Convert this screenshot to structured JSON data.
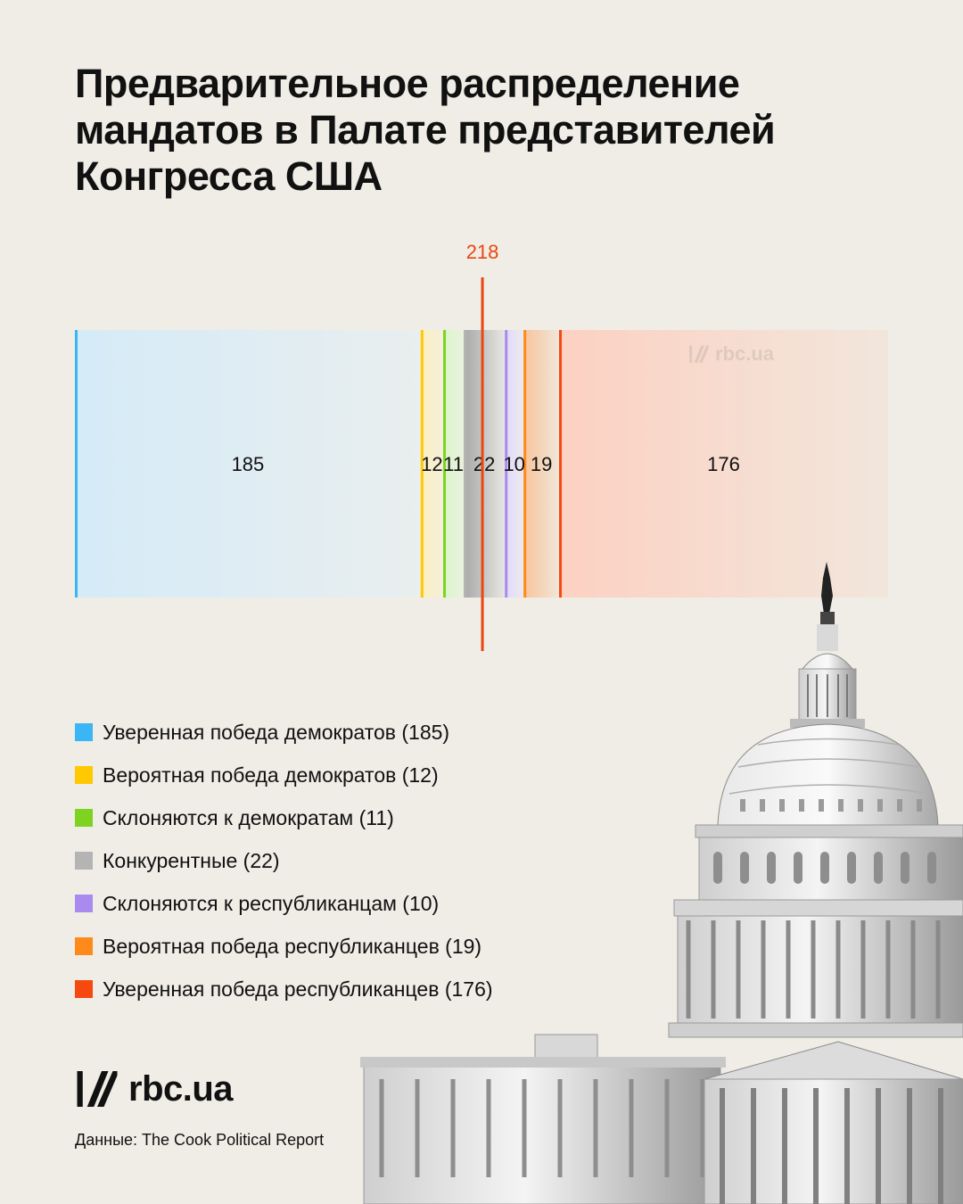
{
  "title": "Предварительное распределение мандатов в Палате представителей Конгресса США",
  "chart_data": {
    "type": "bar",
    "orientation": "horizontal-stacked",
    "majority_line": {
      "value": 218,
      "label": "218",
      "color": "#e8470f"
    },
    "segments": [
      {
        "name": "Уверенная победа демократов",
        "value": 185,
        "label": "185",
        "color": "#3ab5f5",
        "fill_from": "#d5ebf8",
        "fill_to": "#e9eeee"
      },
      {
        "name": "Вероятная победа демократов",
        "value": 12,
        "label": "12",
        "color": "#ffc800",
        "fill_from": "#fbefbe",
        "fill_to": "#f5efdc"
      },
      {
        "name": "Склоняются к демократам",
        "value": 11,
        "label": "11",
        "color": "#7ed321",
        "fill_from": "#daf5c8",
        "fill_to": "#eaf2df"
      },
      {
        "name": "Конкурентные",
        "value": 22,
        "label": "22",
        "color": "#b4b4b4",
        "fill_from": "#a8a8a8",
        "fill_to": "#e6e6e2"
      },
      {
        "name": "Склоняются к республиканцам",
        "value": 10,
        "label": "10",
        "color": "#a98bf0",
        "fill_from": "#e1dbf7",
        "fill_to": "#ece9f0"
      },
      {
        "name": "Вероятная победа республиканцев",
        "value": 19,
        "label": "19",
        "color": "#ff8a1c",
        "fill_from": "#f8c49b",
        "fill_to": "#f0e6da"
      },
      {
        "name": "Уверенная победа республиканцев",
        "value": 176,
        "label": "176",
        "color": "#f5490f",
        "fill_from": "#fcd1c2",
        "fill_to": "#f2e6dc"
      }
    ]
  },
  "legend": [
    {
      "label": "Уверенная победа демократов (185)",
      "color": "#3ab5f5"
    },
    {
      "label": "Вероятная победа демократов (12)",
      "color": "#ffc800"
    },
    {
      "label": "Склоняются к демократам (11)",
      "color": "#7ed321"
    },
    {
      "label": "Конкурентные (22)",
      "color": "#b4b4b4"
    },
    {
      "label": "Склоняются к республиканцам (10)",
      "color": "#a98bf0"
    },
    {
      "label": "Вероятная победа республиканцев (19)",
      "color": "#ff8a1c"
    },
    {
      "label": "Уверенная победа республиканцев (176)",
      "color": "#f5490f"
    }
  ],
  "brand": {
    "name": "rbc.ua",
    "icon": "rbc-logo-icon"
  },
  "watermark": {
    "text": "rbc.ua",
    "icon": "rbc-logo-icon"
  },
  "source": "Данные: The Cook Political Report",
  "illustration": {
    "icon": "capitol-building-icon"
  }
}
